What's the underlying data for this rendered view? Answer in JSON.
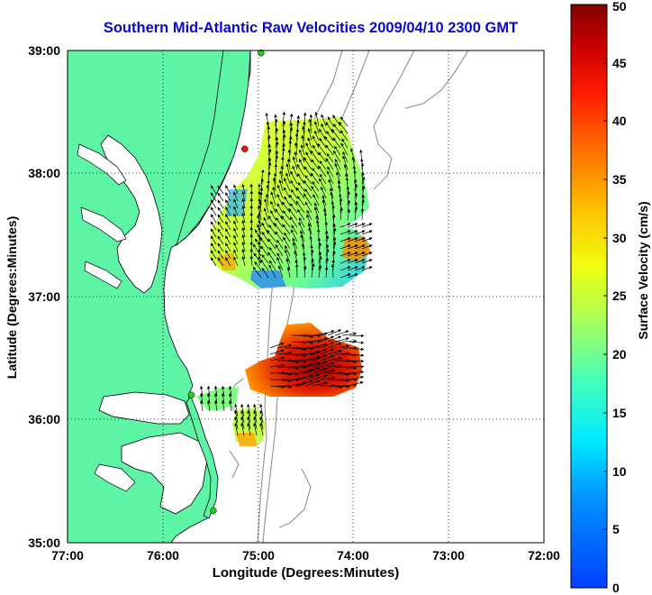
{
  "title": "Southern Mid-Atlantic Raw Velocities 2009/04/10 2300 GMT",
  "xlabel": "Longitude (Degrees:Minutes)",
  "ylabel": "Latitude (Degrees:Minutes)",
  "x_ticks": [
    "77:00",
    "76:00",
    "75:00",
    "74:00",
    "73:00",
    "72:00"
  ],
  "y_ticks": [
    "39:00",
    "38:00",
    "37:00",
    "36:00",
    "35:00"
  ],
  "colorbar": {
    "label": "Surface Velocity (cm/s)",
    "ticks": [
      "0",
      "5",
      "10",
      "15",
      "20",
      "25",
      "30",
      "35",
      "40",
      "45",
      "50"
    ],
    "range": [
      0,
      50
    ],
    "colormap": "jet"
  },
  "map": {
    "lon_range": [
      "77:00 W",
      "72:00 W"
    ],
    "lat_range": [
      "35:00 N",
      "39:00 N"
    ],
    "land_color": "#5df5a5",
    "coast_color": "#000000",
    "bathymetry_color": "#999999",
    "grid": "dotted",
    "site_markers": [
      {
        "lon": -74.97,
        "lat": 38.98,
        "color": "#22cc22"
      },
      {
        "lon": -75.14,
        "lat": 38.2,
        "color": "#ee1111"
      },
      {
        "lon": -75.7,
        "lat": 36.2,
        "color": "#22cc22"
      },
      {
        "lon": -75.47,
        "lat": 35.26,
        "color": "#22cc22"
      }
    ]
  }
}
